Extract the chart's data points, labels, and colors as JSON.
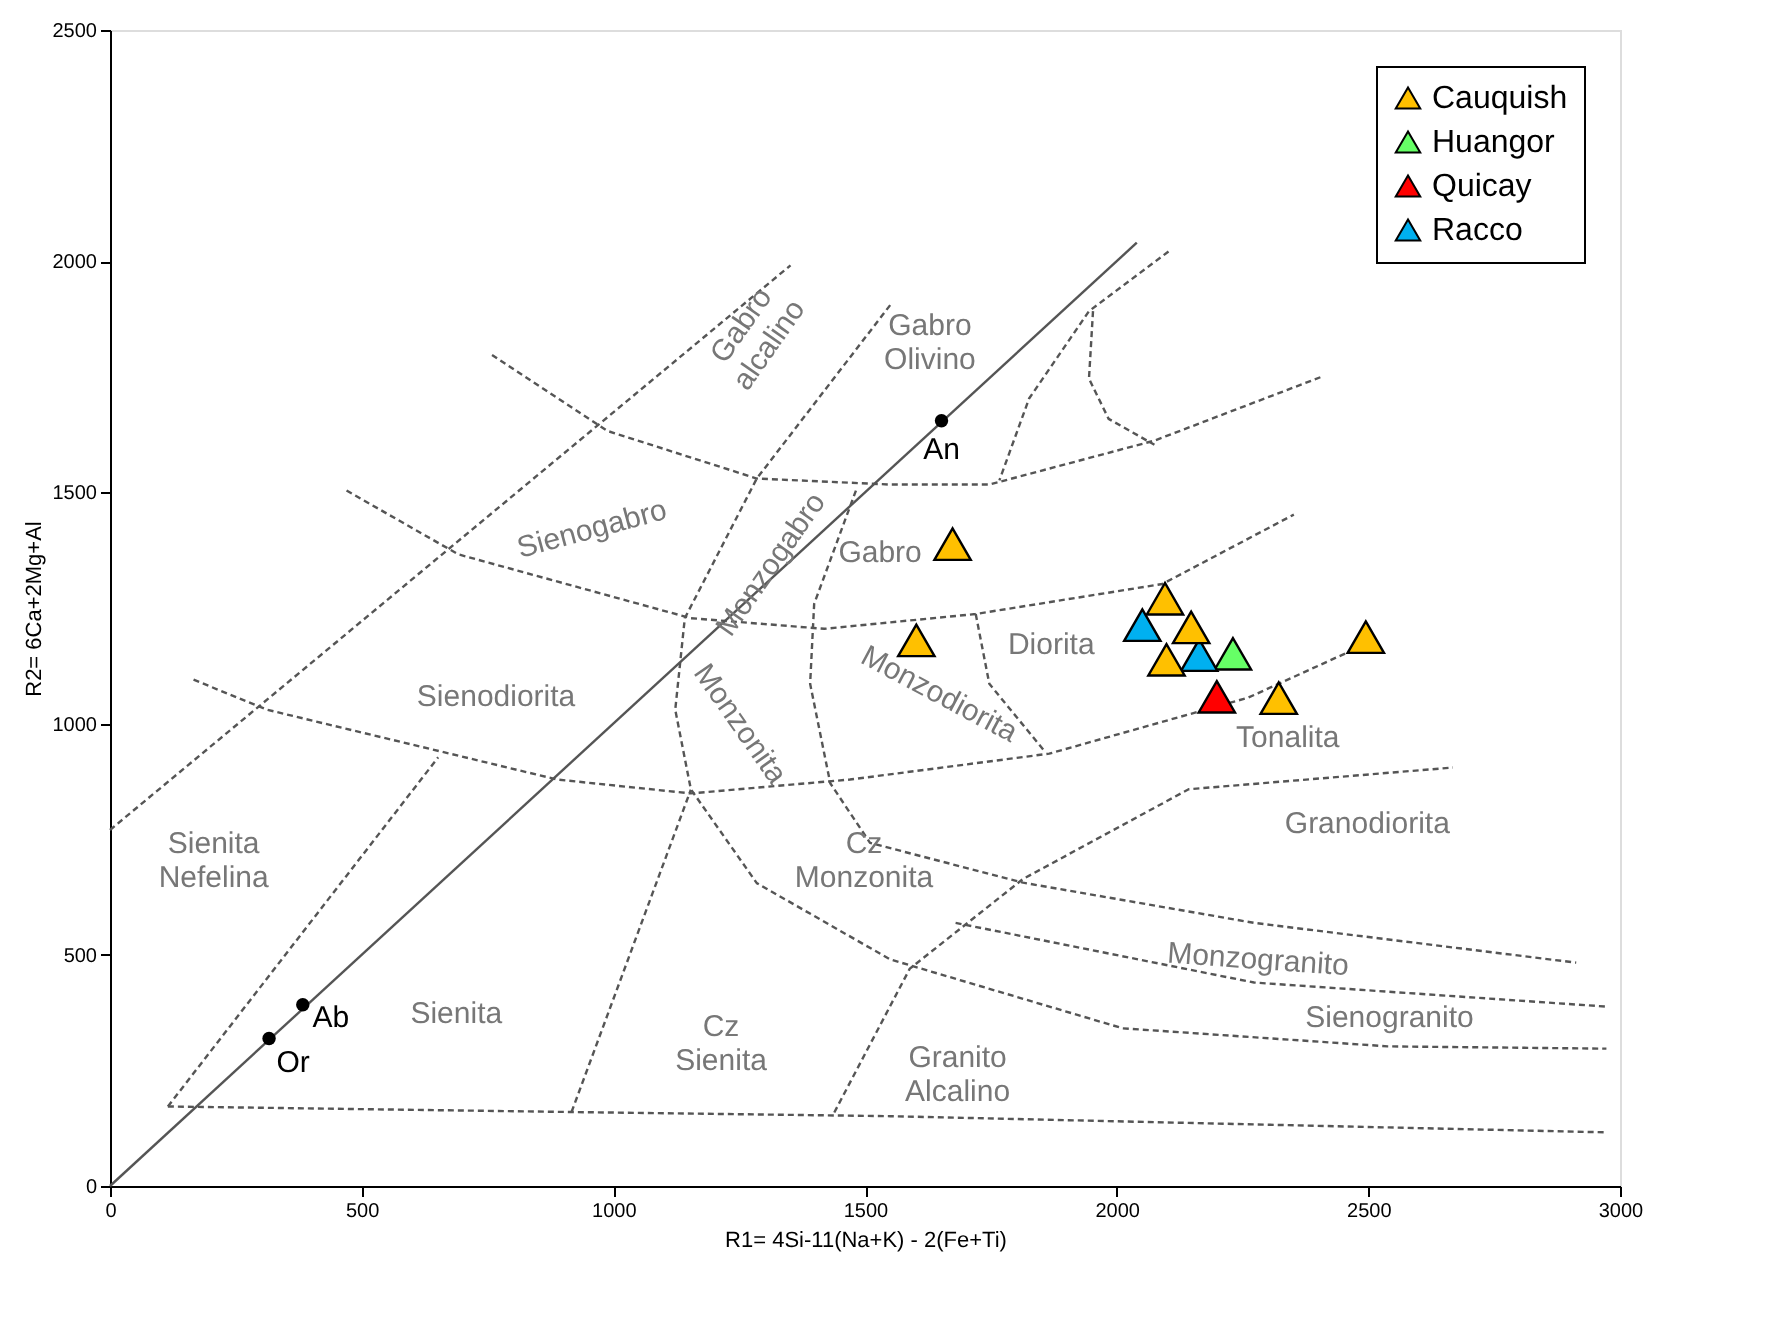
{
  "chart_data": {
    "type": "scatter",
    "xlabel": "R1= 4Si-11(Na+K) - 2(Fe+Ti)",
    "ylabel": "R2= 6Ca+2Mg+Al",
    "xlim": [
      0,
      3000
    ],
    "xticks": [
      0,
      500,
      1000,
      1500,
      2000,
      2500,
      3000
    ],
    "ylim": [
      0,
      2500
    ],
    "yticks": [
      0,
      500,
      1000,
      1500,
      2000,
      2500
    ],
    "grid": false,
    "legend": "top right",
    "marker": "triangle",
    "series": [
      {
        "type": "line",
        "color": "#555555",
        "line_style": "solid",
        "marker": "none",
        "x": [
          0,
          2040
        ],
        "values": [
          0,
          2040
        ]
      },
      {
        "type": "line",
        "color": "#555555",
        "line_style": "dashed",
        "marker": "none",
        "x": [
          0,
          1352
        ],
        "values": [
          770,
          1991
        ]
      },
      {
        "type": "line",
        "color": "#555555",
        "line_style": "dashed",
        "marker": "none",
        "x": [
          115,
          652
        ],
        "values": [
          172,
          927
        ]
      },
      {
        "type": "line",
        "color": "#555555",
        "line_style": "dashed",
        "marker": "none",
        "x": [
          115,
          917,
          1550,
          2973
        ],
        "values": [
          172,
          160,
          151,
          116
        ]
      },
      {
        "type": "line",
        "color": "#555555",
        "line_style": "dashed",
        "marker": "none",
        "x": [
          166,
          312,
          889,
          1154,
          1470,
          1866,
          2261,
          2471
        ],
        "values": [
          1095,
          1030,
          879,
          849,
          879,
          935,
          1056,
          1160
        ]
      },
      {
        "type": "line",
        "color": "#555555",
        "line_style": "dashed",
        "marker": "none",
        "x": [
          470,
          692,
          1154,
          1419,
          1720,
          2091,
          2352
        ],
        "values": [
          1504,
          1366,
          1228,
          1205,
          1237,
          1302,
          1452
        ]
      },
      {
        "type": "line",
        "color": "#555555",
        "line_style": "dashed",
        "marker": "none",
        "x": [
          759,
          988,
          1285,
          1550,
          1747,
          2075,
          2407
        ],
        "values": [
          1797,
          1633,
          1530,
          1517,
          1517,
          1612,
          1750
        ]
      },
      {
        "type": "line",
        "color": "#555555",
        "line_style": "dashed",
        "marker": "none",
        "x": [
          1550,
          1285,
          1142,
          1123,
          1154,
          1285,
          1550,
          2012,
          2538,
          2973
        ],
        "values": [
          1905,
          1530,
          1228,
          1030,
          858,
          655,
          490,
          341,
          302,
          297
        ]
      },
      {
        "type": "line",
        "color": "#555555",
        "line_style": "dashed",
        "marker": "none",
        "x": [
          1482,
          1399,
          1391,
          1431,
          1510,
          1814,
          2273,
          2913
        ],
        "values": [
          1504,
          1259,
          1086,
          871,
          742,
          656,
          569,
          483
        ]
      },
      {
        "type": "line",
        "color": "#555555",
        "line_style": "dashed",
        "marker": "none",
        "x": [
          1680,
          2273,
          2973
        ],
        "values": [
          569,
          440,
          388
        ]
      },
      {
        "type": "line",
        "color": "#555555",
        "line_style": "dashed",
        "marker": "none",
        "x": [
          1439,
          1589,
          1814,
          2143,
          2668
        ],
        "values": [
          159,
          470,
          664,
          858,
          905
        ]
      },
      {
        "type": "line",
        "color": "#555555",
        "line_style": "dashed",
        "marker": "none",
        "x": [
          1720,
          1747,
          1854
        ],
        "values": [
          1237,
          1086,
          944
        ]
      },
      {
        "type": "line",
        "color": "#555555",
        "line_style": "dashed",
        "marker": "none",
        "x": [
          2103,
          1945,
          1826,
          1767
        ],
        "values": [
          2021,
          1892,
          1703,
          1526
        ]
      },
      {
        "type": "line",
        "color": "#555555",
        "line_style": "dashed",
        "marker": "none",
        "x": [
          1953,
          1945,
          1984,
          2075
        ],
        "values": [
          1892,
          1746,
          1659,
          1603
        ]
      },
      {
        "type": "line",
        "color": "#555555",
        "line_style": "dashed",
        "marker": "none",
        "x": [
          917,
          1154
        ],
        "values": [
          160,
          857
        ]
      },
      {
        "type": "scatter",
        "color": "#000000",
        "marker": "circle",
        "x": [
          1652,
          383,
          316
        ],
        "values": [
          1655,
          392,
          319
        ]
      },
      {
        "name": "Cauquish",
        "type": "scatter",
        "color": "#ffc000",
        "x": [
          1674,
          1602,
          2096,
          2148,
          2099,
          2322,
          2495
        ],
        "values": [
          1388,
          1180,
          1270,
          1208,
          1138,
          1055,
          1187
        ]
      },
      {
        "name": "Huangor",
        "type": "scatter",
        "color": "#66ff66",
        "x": [
          2231
        ],
        "values": [
          1151
        ]
      },
      {
        "name": "Quicay",
        "type": "scatter",
        "color": "#ff0000",
        "x": [
          2199
        ],
        "values": [
          1058
        ]
      },
      {
        "name": "Racco",
        "type": "scatter",
        "color": "#00b0f0",
        "x": [
          2051,
          2164
        ],
        "values": [
          1213,
          1148
        ]
      }
    ],
    "annotations": [
      {
        "text": "An",
        "x": 1652,
        "y": 1655
      },
      {
        "text": "Ab",
        "x": 383,
        "y": 392
      },
      {
        "text": "Or",
        "x": 316,
        "y": 319
      },
      "Gabro\nalcalino",
      "Gabro\nOlivino",
      "Sienogabro",
      "Monzogabro",
      "Gabro",
      "Sienodiorita",
      "Monzonita",
      "Monzodiorita",
      "Diorita",
      "Tonalita",
      "Granodiorita",
      "Sienita\nNefelina",
      "Cz\nMonzonita",
      "Monzogranito",
      "Sienogranito",
      "Sienita",
      "Cz\nSienita",
      "Granito\nAlcalino"
    ]
  }
}
